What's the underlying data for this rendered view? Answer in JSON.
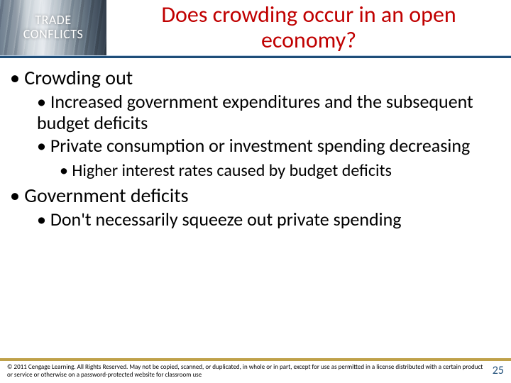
{
  "badge": {
    "line1": "TRADE",
    "line2": "CONFLICTS"
  },
  "title": "Does crowding occur in an open economy?",
  "bullets": {
    "a": "Crowding out",
    "a1": "Increased government expenditures and the subsequent budget deficits",
    "a2": "Private consumption or investment spending decreasing",
    "a2i": "Higher interest rates caused by budget deficits",
    "b": "Government deficits",
    "b1": "Don't necessarily squeeze out private spending"
  },
  "footer": {
    "copyright": "© 2011 Cengage Learning. All Rights Reserved. May not be copied, scanned, or duplicated, in whole or in part, except for use as permitted in a license distributed with a certain product or service or otherwise on a password-protected website for classroom use",
    "page": "25"
  },
  "colors": {
    "title": "#c00000",
    "hr": "#1f4e79",
    "footer_rule": "#bfa14a",
    "pagenum": "#1f4e79",
    "background": "#ffffff"
  }
}
